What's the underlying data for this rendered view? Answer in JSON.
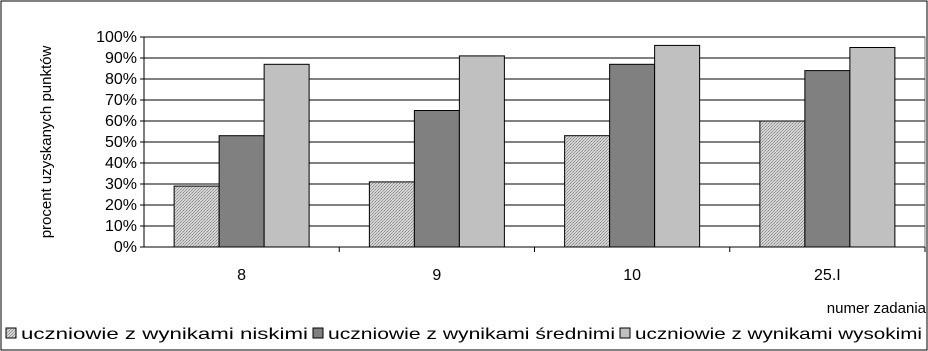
{
  "chart_data": {
    "type": "bar",
    "title": "",
    "xlabel": "numer zadania",
    "ylabel": "procent uzyskanych punktów",
    "categories": [
      "8",
      "9",
      "10",
      "25.I"
    ],
    "ylim": [
      0,
      100
    ],
    "yticks": [
      "0%",
      "10%",
      "20%",
      "30%",
      "40%",
      "50%",
      "60%",
      "70%",
      "80%",
      "90%",
      "100%"
    ],
    "grid": true,
    "legend_position": "bottom",
    "series": [
      {
        "name": "uczniowie z wynikami niskimi",
        "values": [
          29,
          31,
          53,
          60
        ],
        "color": "#c8c8c8"
      },
      {
        "name": "uczniowie z wynikami średnimi",
        "values": [
          53,
          65,
          87,
          84
        ],
        "color": "#808080"
      },
      {
        "name": "uczniowie z wynikami wysokimi",
        "values": [
          87,
          91,
          96,
          95
        ],
        "color": "#c0c0c0"
      }
    ]
  }
}
